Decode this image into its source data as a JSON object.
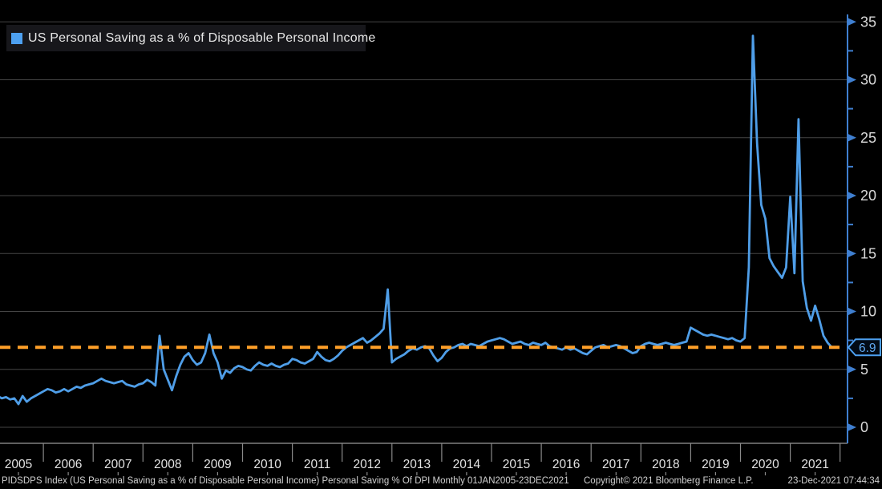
{
  "legend": {
    "label": "US Personal Saving as a % of Disposable Personal Income"
  },
  "footer": {
    "left": "PIDSDPS Index (US Personal Saving as a % of Disposable Personal Income) Personal Saving % Of DPI  Monthly 01JAN2005-23DEC2021",
    "copyright": "Copyright© 2021 Bloomberg Finance L.P.",
    "timestamp": "23-Dec-2021 07:44:34"
  },
  "colors": {
    "background": "#000000",
    "line": "#4f9ee8",
    "legend_swatch": "#4da0f0",
    "dashed_line": "#ffa028",
    "axis": "#3f7fd0",
    "grid": "#454545",
    "band_line": "#9a9a9a",
    "separator": "#8a8a8a",
    "tick_label": "#d9d9d9",
    "year_label": "#e3e3e3",
    "badge_bg": "#020b16",
    "badge_border": "#4da0f0",
    "badge_text": "#5fa8f0"
  },
  "chart_data": {
    "type": "line",
    "title": "US Personal Saving as a % of Disposable Personal Income",
    "series_name": "PIDSDPS Index",
    "frequency": "monthly",
    "x_start": "2005-01",
    "x_end": "2021-11",
    "years": [
      2005,
      2006,
      2007,
      2008,
      2009,
      2010,
      2011,
      2012,
      2013,
      2014,
      2015,
      2016,
      2017,
      2018,
      2019,
      2020,
      2021
    ],
    "y_ticks": [
      0,
      5,
      10,
      15,
      20,
      25,
      30,
      35
    ],
    "y_minor_ticks": [
      2.5,
      7.5,
      12.5,
      17.5,
      22.5,
      27.5,
      32.5
    ],
    "ylim": [
      0,
      35
    ],
    "grid": true,
    "legend_position": "top-left",
    "dashed_line_value": 6.9,
    "last_value": 6.9,
    "last_value_label": "6.9",
    "values": [
      2.7,
      2.7,
      2.5,
      2.6,
      2.4,
      2.5,
      2.0,
      2.7,
      2.2,
      2.5,
      2.7,
      2.9,
      3.1,
      3.3,
      3.2,
      3.0,
      3.1,
      3.3,
      3.1,
      3.3,
      3.5,
      3.4,
      3.6,
      3.7,
      3.8,
      4.0,
      4.2,
      4.0,
      3.9,
      3.8,
      3.9,
      4.0,
      3.7,
      3.6,
      3.5,
      3.7,
      3.8,
      4.1,
      3.9,
      3.6,
      7.9,
      5.0,
      4.1,
      3.2,
      4.4,
      5.4,
      6.1,
      6.4,
      5.8,
      5.4,
      5.6,
      6.4,
      8.0,
      6.4,
      5.6,
      4.2,
      4.9,
      4.7,
      5.1,
      5.3,
      5.2,
      5.0,
      4.9,
      5.3,
      5.6,
      5.4,
      5.3,
      5.5,
      5.3,
      5.2,
      5.4,
      5.5,
      5.9,
      5.8,
      5.6,
      5.5,
      5.7,
      5.9,
      6.5,
      6.1,
      5.8,
      5.7,
      5.9,
      6.2,
      6.6,
      6.9,
      7.1,
      7.3,
      7.5,
      7.7,
      7.3,
      7.5,
      7.8,
      8.1,
      8.5,
      11.9,
      5.6,
      5.9,
      6.1,
      6.3,
      6.6,
      6.8,
      6.7,
      6.9,
      7.0,
      6.8,
      6.2,
      5.7,
      6.0,
      6.5,
      6.8,
      6.9,
      7.1,
      7.2,
      7.0,
      7.2,
      7.1,
      7.0,
      7.2,
      7.4,
      7.5,
      7.6,
      7.7,
      7.6,
      7.4,
      7.2,
      7.3,
      7.4,
      7.2,
      7.1,
      7.3,
      7.2,
      7.1,
      7.3,
      7.0,
      6.9,
      6.8,
      6.7,
      6.9,
      6.7,
      6.8,
      6.6,
      6.4,
      6.3,
      6.6,
      6.9,
      7.0,
      7.1,
      6.9,
      7.0,
      7.1,
      7.0,
      6.8,
      6.6,
      6.4,
      6.5,
      7.0,
      7.2,
      7.3,
      7.2,
      7.1,
      7.2,
      7.3,
      7.2,
      7.1,
      7.2,
      7.3,
      7.4,
      8.6,
      8.4,
      8.2,
      8.0,
      7.9,
      8.0,
      7.9,
      7.8,
      7.7,
      7.6,
      7.7,
      7.5,
      7.4,
      7.7,
      13.8,
      33.8,
      24.5,
      19.2,
      18.0,
      14.6,
      13.9,
      13.4,
      12.9,
      13.8,
      19.9,
      13.3,
      26.6,
      12.6,
      10.3,
      9.2,
      10.5,
      9.3,
      7.9,
      7.3,
      6.9
    ]
  }
}
